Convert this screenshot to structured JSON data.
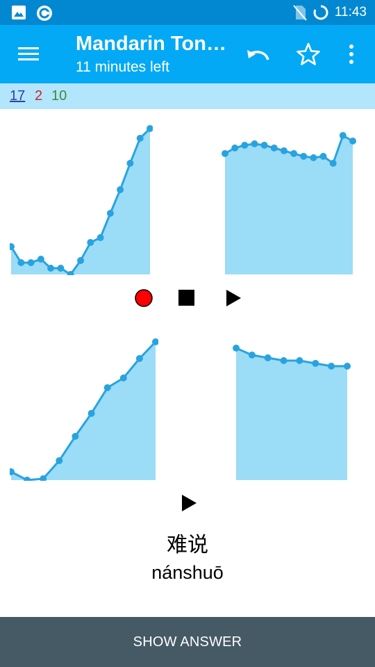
{
  "status_bar": {
    "time": "11:43",
    "icons": [
      "image-icon",
      "sync-app-icon",
      "no-sim-icon",
      "loading-ring-icon"
    ]
  },
  "app_bar": {
    "title": "Mandarin Ton…",
    "subtitle": "11 minutes left",
    "icons": [
      "menu-icon",
      "undo-icon",
      "star-icon",
      "more-vert-icon"
    ]
  },
  "counts": {
    "new": "17",
    "learning": "2",
    "review": "10"
  },
  "colors": {
    "status_bar": "#0288d1",
    "app_bar": "#03a9f4",
    "counts_bar": "#b3e5fc",
    "chart_line": "#29a3df",
    "chart_fill": "#9bdcf7",
    "record_button": "#ff0000",
    "show_answer_bg": "#455a64"
  },
  "chart_data": [
    {
      "type": "area",
      "values": [
        0.4,
        0.17,
        0.17,
        0.22,
        0.09,
        0.09,
        0.0,
        0.2,
        0.46,
        0.53,
        0.88,
        1.22,
        1.6,
        1.96,
        2.1
      ]
    },
    {
      "type": "area",
      "values": [
        0.87,
        0.91,
        0.93,
        0.94,
        0.93,
        0.91,
        0.89,
        0.87,
        0.85,
        0.84,
        0.85,
        0.8,
        1.0,
        0.96
      ]
    },
    {
      "type": "area",
      "values": [
        0.12,
        0.0,
        0.02,
        0.28,
        0.63,
        0.96,
        1.33,
        1.47,
        1.75,
        1.99
      ]
    },
    {
      "type": "area",
      "values": [
        0.95,
        0.9,
        0.88,
        0.86,
        0.86,
        0.84,
        0.82,
        0.82
      ]
    }
  ],
  "controls": {
    "record": "record-icon",
    "stop": "stop-icon",
    "play": "play-icon",
    "play_reference": "play-icon"
  },
  "card": {
    "hanzi": "难说",
    "pinyin": "nánshuō"
  },
  "show_answer_label": "SHOW ANSWER"
}
